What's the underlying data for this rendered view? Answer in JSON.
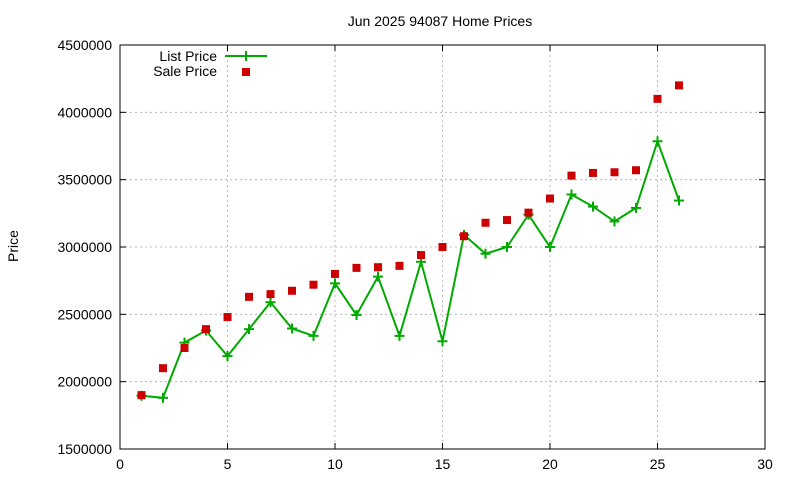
{
  "chart_data": {
    "type": "line",
    "title": "Jun 2025 94087 Home Prices",
    "xlabel": "",
    "ylabel": "Price",
    "xlim": [
      0,
      30
    ],
    "ylim": [
      1500000,
      4500000
    ],
    "xticks": [
      0,
      5,
      10,
      15,
      20,
      25,
      30
    ],
    "yticks": [
      1500000,
      2000000,
      2500000,
      3000000,
      3500000,
      4000000,
      4500000
    ],
    "grid": true,
    "legend_position": "top-left",
    "series": [
      {
        "name": "List Price",
        "kind": "line-points",
        "color": "#00aa00",
        "marker": "plus",
        "x": [
          1,
          2,
          3,
          4,
          5,
          6,
          7,
          8,
          9,
          10,
          11,
          12,
          13,
          14,
          15,
          16,
          17,
          18,
          19,
          20,
          21,
          22,
          23,
          24,
          25,
          26
        ],
        "y": [
          1895000,
          1880000,
          2290000,
          2380000,
          2190000,
          2390000,
          2590000,
          2395000,
          2340000,
          2730000,
          2495000,
          2780000,
          2340000,
          2890000,
          2300000,
          3090000,
          2950000,
          3000000,
          3240000,
          3000000,
          3390000,
          3300000,
          3190000,
          3290000,
          3785000,
          3345000
        ]
      },
      {
        "name": "Sale Price",
        "kind": "points",
        "color": "#cc0000",
        "marker": "square",
        "x": [
          1,
          2,
          3,
          4,
          5,
          6,
          7,
          8,
          9,
          10,
          11,
          12,
          13,
          14,
          15,
          16,
          17,
          18,
          19,
          20,
          21,
          22,
          23,
          24,
          25,
          26
        ],
        "y": [
          1900000,
          2100000,
          2250000,
          2390000,
          2480000,
          2630000,
          2650000,
          2675000,
          2720000,
          2800000,
          2845000,
          2850000,
          2860000,
          2940000,
          3000000,
          3080000,
          3180000,
          3200000,
          3255000,
          3360000,
          3530000,
          3550000,
          3555000,
          3570000,
          4100000,
          4200000
        ]
      }
    ]
  }
}
